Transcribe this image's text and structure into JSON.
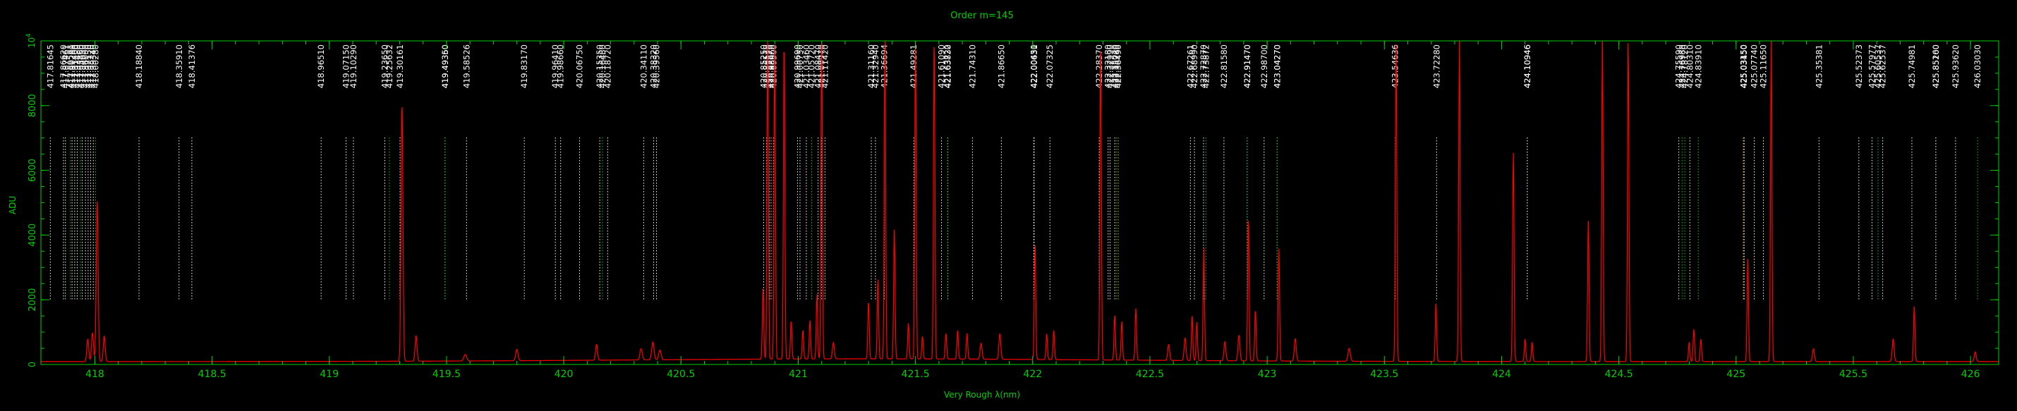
{
  "chart_data": {
    "type": "line",
    "title": "Order m=145",
    "xlabel": "Very Rough λ(nm)",
    "ylabel": "ADU",
    "xlim": [
      417.77,
      426.12
    ],
    "ylim": [
      0,
      10000
    ],
    "x_ticks": [
      418,
      418.5,
      419,
      419.5,
      420,
      420.5,
      421,
      421.5,
      422,
      422.5,
      423,
      423.5,
      424,
      424.5,
      425,
      425.5,
      426
    ],
    "x_tick_labels": [
      "418",
      "418.5",
      "419",
      "419.5",
      "420",
      "420.5",
      "421",
      "421.5",
      "422",
      "422.5",
      "423",
      "423.5",
      "424",
      "424.5",
      "425",
      "425.5",
      "426"
    ],
    "y_ticks": [
      0,
      2000,
      4000,
      6000,
      8000
    ],
    "y_tick_labels": [
      "0",
      "2000",
      "4000",
      "6000",
      "8000"
    ],
    "y_top_label": {
      "base": "10",
      "exponent": "4"
    },
    "colors": {
      "axes": "#00d000",
      "spectrum": "#ff0000",
      "white_lines": "#ffffff",
      "green_lines": "#00cc00",
      "orange_lines": "#ff9900",
      "background": "#000000"
    },
    "series": [
      {
        "role": "spectrum",
        "color": "#ff0000",
        "baseline": 120,
        "peaks": [
          [
            417.97,
            700,
            0.004
          ],
          [
            417.99,
            900,
            0.004
          ],
          [
            418.01,
            5000,
            0.004
          ],
          [
            418.04,
            800,
            0.004
          ],
          [
            419.31,
            8000,
            0.004
          ],
          [
            419.37,
            800,
            0.004
          ],
          [
            419.58,
            200,
            0.006
          ],
          [
            419.8,
            350,
            0.005
          ],
          [
            420.14,
            500,
            0.004
          ],
          [
            420.33,
            350,
            0.005
          ],
          [
            420.38,
            550,
            0.005
          ],
          [
            420.41,
            300,
            0.005
          ],
          [
            420.85,
            2200,
            0.003
          ],
          [
            420.87,
            10000,
            0.003
          ],
          [
            420.9,
            10000,
            0.003
          ],
          [
            420.94,
            10000,
            0.003
          ],
          [
            420.97,
            1200,
            0.003
          ],
          [
            421.02,
            900,
            0.003
          ],
          [
            421.05,
            1200,
            0.003
          ],
          [
            421.08,
            2000,
            0.003
          ],
          [
            421.1,
            10000,
            0.003
          ],
          [
            421.15,
            500,
            0.004
          ],
          [
            421.3,
            1800,
            0.003
          ],
          [
            421.34,
            2500,
            0.003
          ],
          [
            421.37,
            10000,
            0.003
          ],
          [
            421.41,
            4000,
            0.003
          ],
          [
            421.47,
            1100,
            0.003
          ],
          [
            421.5,
            10000,
            0.003
          ],
          [
            421.53,
            700,
            0.003
          ],
          [
            421.58,
            10000,
            0.003
          ],
          [
            421.63,
            800,
            0.003
          ],
          [
            421.68,
            900,
            0.003
          ],
          [
            421.72,
            800,
            0.003
          ],
          [
            421.78,
            500,
            0.004
          ],
          [
            421.86,
            800,
            0.004
          ],
          [
            422.01,
            3600,
            0.003
          ],
          [
            422.06,
            800,
            0.003
          ],
          [
            422.09,
            900,
            0.003
          ],
          [
            422.29,
            10000,
            0.003
          ],
          [
            422.35,
            1400,
            0.003
          ],
          [
            422.38,
            1200,
            0.003
          ],
          [
            422.44,
            1600,
            0.003
          ],
          [
            422.58,
            500,
            0.004
          ],
          [
            422.65,
            700,
            0.004
          ],
          [
            422.68,
            1400,
            0.003
          ],
          [
            422.7,
            1200,
            0.003
          ],
          [
            422.73,
            3500,
            0.003
          ],
          [
            422.82,
            600,
            0.004
          ],
          [
            422.88,
            800,
            0.004
          ],
          [
            422.92,
            4500,
            0.003
          ],
          [
            422.95,
            1600,
            0.003
          ],
          [
            423.05,
            3500,
            0.003
          ],
          [
            423.12,
            700,
            0.004
          ],
          [
            423.35,
            400,
            0.005
          ],
          [
            423.55,
            10000,
            0.003
          ],
          [
            423.72,
            1800,
            0.003
          ],
          [
            423.82,
            10000,
            0.003
          ],
          [
            424.05,
            6500,
            0.003
          ],
          [
            424.1,
            700,
            0.003
          ],
          [
            424.13,
            600,
            0.003
          ],
          [
            424.37,
            4400,
            0.003
          ],
          [
            424.43,
            10000,
            0.003
          ],
          [
            424.54,
            10000,
            0.003
          ],
          [
            424.8,
            600,
            0.003
          ],
          [
            424.82,
            1000,
            0.003
          ],
          [
            424.85,
            700,
            0.003
          ],
          [
            425.05,
            3200,
            0.003
          ],
          [
            425.15,
            10000,
            0.003
          ],
          [
            425.33,
            400,
            0.004
          ],
          [
            425.67,
            700,
            0.004
          ],
          [
            425.76,
            1700,
            0.003
          ],
          [
            426.02,
            300,
            0.004
          ]
        ]
      }
    ],
    "line_ids": [
      {
        "x": 417.81,
        "label": "417.81645",
        "color": "white"
      },
      {
        "x": 417.8662,
        "label": "417.86620",
        "color": "white"
      },
      {
        "x": 417.8746,
        "label": "417.87461",
        "color": "white"
      },
      {
        "x": 417.9028,
        "label": "417.90280",
        "color": "white"
      },
      {
        "x": 417.914,
        "label": "417.91400",
        "color": "white"
      },
      {
        "x": 417.9248,
        "label": "417.92480",
        "color": "white"
      },
      {
        "x": 417.9465,
        "label": "417.94650",
        "color": "white"
      },
      {
        "x": 417.96,
        "label": "417.96000",
        "color": "white"
      },
      {
        "x": 417.9713,
        "label": "417.97130",
        "color": "white"
      },
      {
        "x": 417.9822,
        "label": "417.98220",
        "color": "white"
      },
      {
        "x": 417.9934,
        "label": "417.99340",
        "color": "white"
      },
      {
        "x": 417.8958,
        "label": "417.89581",
        "color": "green"
      },
      {
        "x": 417.9386,
        "label": "417.93860",
        "color": "green"
      },
      {
        "x": 418.0028,
        "label": "418.00280",
        "color": "green"
      },
      {
        "x": 418.1884,
        "label": "418.18840",
        "color": "white"
      },
      {
        "x": 418.3591,
        "label": "418.35910",
        "color": "white"
      },
      {
        "x": 418.4137,
        "label": "418.41376",
        "color": "white"
      },
      {
        "x": 418.9651,
        "label": "418.96510",
        "color": "white"
      },
      {
        "x": 419.0715,
        "label": "419.07150",
        "color": "white"
      },
      {
        "x": 419.1029,
        "label": "419.10290",
        "color": "white"
      },
      {
        "x": 419.2365,
        "label": "419.23650",
        "color": "white"
      },
      {
        "x": 419.2563,
        "label": "419.25632",
        "color": "green"
      },
      {
        "x": 419.3016,
        "label": "419.30161",
        "color": "white"
      },
      {
        "x": 419.4936,
        "label": "419.49360",
        "color": "white"
      },
      {
        "x": 419.4935,
        "label": "419.49350",
        "color": "green"
      },
      {
        "x": 419.5853,
        "label": "419.58526",
        "color": "white"
      },
      {
        "x": 419.8317,
        "label": "419.83170",
        "color": "white"
      },
      {
        "x": 419.9641,
        "label": "419.96410",
        "color": "white"
      },
      {
        "x": 419.9866,
        "label": "419.98660",
        "color": "white"
      },
      {
        "x": 420.0675,
        "label": "420.06750",
        "color": "white"
      },
      {
        "x": 420.1535,
        "label": "420.15350",
        "color": "white"
      },
      {
        "x": 420.1648,
        "label": "420.16480",
        "color": "green"
      },
      {
        "x": 420.1872,
        "label": "420.18720",
        "color": "white"
      },
      {
        "x": 420.3411,
        "label": "420.34110",
        "color": "white"
      },
      {
        "x": 420.3832,
        "label": "420.38320",
        "color": "white"
      },
      {
        "x": 420.3956,
        "label": "420.39560",
        "color": "white"
      },
      {
        "x": 420.8525,
        "label": "420.85250",
        "color": "white"
      },
      {
        "x": 420.8651,
        "label": "420.86510",
        "color": "white"
      },
      {
        "x": 420.8787,
        "label": "420.87870",
        "color": "white"
      },
      {
        "x": 420.8866,
        "label": "420.88660",
        "color": "orange"
      },
      {
        "x": 420.895,
        "label": "420.89500",
        "color": "white"
      },
      {
        "x": 420.9969,
        "label": "420.99690",
        "color": "white"
      },
      {
        "x": 421.0075,
        "label": "421.00750",
        "color": "white"
      },
      {
        "x": 421.0346,
        "label": "421.03460",
        "color": "white"
      },
      {
        "x": 421.0572,
        "label": "421.05720",
        "color": "green"
      },
      {
        "x": 421.0847,
        "label": "421.08470",
        "color": "white"
      },
      {
        "x": 421.0997,
        "label": "421.09970",
        "color": "white"
      },
      {
        "x": 421.1142,
        "label": "421.11420",
        "color": "white"
      },
      {
        "x": 421.3116,
        "label": "421.31160",
        "color": "white"
      },
      {
        "x": 421.3294,
        "label": "421.32940",
        "color": "white"
      },
      {
        "x": 421.3669,
        "label": "421.36694",
        "color": "white"
      },
      {
        "x": 421.4928,
        "label": "421.49281",
        "color": "white"
      },
      {
        "x": 421.6109,
        "label": "421.61090",
        "color": "white"
      },
      {
        "x": 421.6383,
        "label": "421.63830",
        "color": "white"
      },
      {
        "x": 421.6372,
        "label": "421.63722",
        "color": "green"
      },
      {
        "x": 421.7431,
        "label": "421.74310",
        "color": "white"
      },
      {
        "x": 421.8665,
        "label": "421.86650",
        "color": "white"
      },
      {
        "x": 422.0045,
        "label": "422.00450",
        "color": "white"
      },
      {
        "x": 422.0063,
        "label": "422.00631",
        "color": "white"
      },
      {
        "x": 422.0735,
        "label": "422.07325",
        "color": "white"
      },
      {
        "x": 422.2837,
        "label": "422.28370",
        "color": "white"
      },
      {
        "x": 422.3218,
        "label": "422.32180",
        "color": "white"
      },
      {
        "x": 422.3299,
        "label": "422.32990",
        "color": "white"
      },
      {
        "x": 422.3502,
        "label": "422.35020",
        "color": "white"
      },
      {
        "x": 422.3578,
        "label": "422.35780",
        "color": "green"
      },
      {
        "x": 422.3649,
        "label": "422.36490",
        "color": "orange"
      },
      {
        "x": 422.6726,
        "label": "422.67261",
        "color": "white"
      },
      {
        "x": 422.6899,
        "label": "422.68990",
        "color": "white"
      },
      {
        "x": 422.7287,
        "label": "422.72870",
        "color": "white"
      },
      {
        "x": 422.7387,
        "label": "422.73872",
        "color": "green"
      },
      {
        "x": 422.8158,
        "label": "422.81580",
        "color": "white"
      },
      {
        "x": 422.9147,
        "label": "422.91470",
        "color": "white"
      },
      {
        "x": 422.9147,
        "label": "422.91470",
        "color": "green"
      },
      {
        "x": 422.987,
        "label": "422.98700",
        "color": "white"
      },
      {
        "x": 423.0427,
        "label": "423.04270",
        "color": "white"
      },
      {
        "x": 423.0427,
        "label": "423.04270",
        "color": "green"
      },
      {
        "x": 423.5464,
        "label": "423.54636",
        "color": "white"
      },
      {
        "x": 423.7228,
        "label": "423.72280",
        "color": "white"
      },
      {
        "x": 424.1095,
        "label": "424.10946",
        "color": "green"
      },
      {
        "x": 424.1095,
        "label": "424.10946",
        "color": "white"
      },
      {
        "x": 424.7559,
        "label": "424.75590",
        "color": "white"
      },
      {
        "x": 424.7698,
        "label": "424.76980",
        "color": "green"
      },
      {
        "x": 424.7812,
        "label": "424.78120",
        "color": "green"
      },
      {
        "x": 424.8031,
        "label": "424.80310",
        "color": "white"
      },
      {
        "x": 424.8391,
        "label": "424.83910",
        "color": "green"
      },
      {
        "x": 425.0315,
        "label": "425.03150",
        "color": "white"
      },
      {
        "x": 425.0315,
        "label": "425.03150",
        "color": "orange"
      },
      {
        "x": 425.0345,
        "label": "425.03450",
        "color": "white"
      },
      {
        "x": 425.0774,
        "label": "425.07740",
        "color": "white"
      },
      {
        "x": 425.1165,
        "label": "425.11650",
        "color": "white"
      },
      {
        "x": 425.3538,
        "label": "425.35381",
        "color": "white"
      },
      {
        "x": 425.5237,
        "label": "425.52373",
        "color": "white"
      },
      {
        "x": 425.5798,
        "label": "425.57977",
        "color": "white"
      },
      {
        "x": 425.6054,
        "label": "425.60537",
        "color": "green"
      },
      {
        "x": 425.6254,
        "label": "425.62537",
        "color": "white"
      },
      {
        "x": 425.7498,
        "label": "425.74981",
        "color": "white"
      },
      {
        "x": 425.8516,
        "label": "425.85160",
        "color": "green"
      },
      {
        "x": 425.852,
        "label": "425.85200",
        "color": "white"
      },
      {
        "x": 425.9362,
        "label": "425.93620",
        "color": "white"
      },
      {
        "x": 426.0303,
        "label": "426.03030",
        "color": "green"
      }
    ]
  }
}
